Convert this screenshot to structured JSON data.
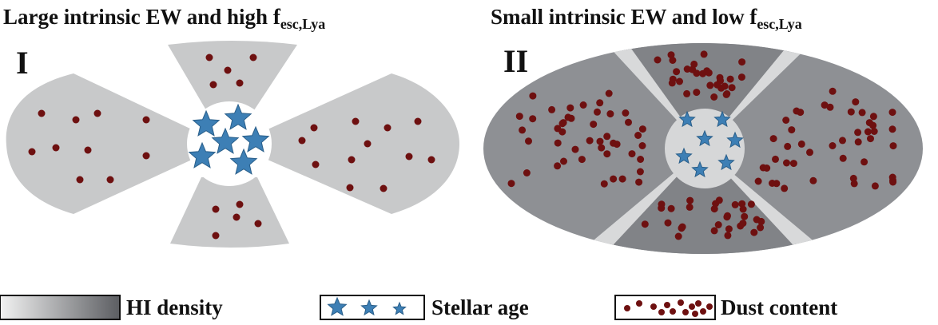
{
  "panels": [
    {
      "title": {
        "text": "Large intrinsic EW and high f",
        "subscript": "esc,Lya"
      },
      "label": "I"
    },
    {
      "title": {
        "text": "Small intrinsic EW and low f",
        "subscript": "esc,Lya"
      },
      "label": "II"
    }
  ],
  "legend": {
    "hi_density": "HI density",
    "stellar_age": "Stellar age",
    "dust_content": "Dust content"
  }
}
